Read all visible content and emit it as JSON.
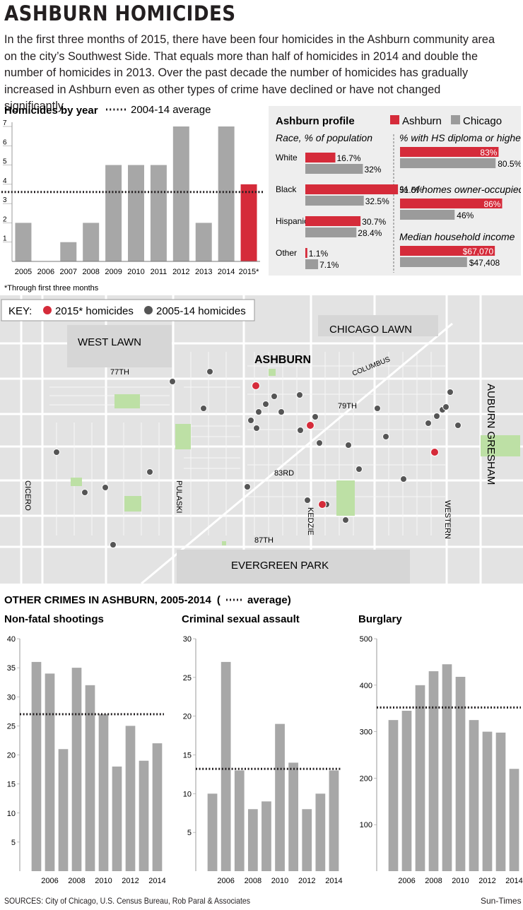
{
  "title": "ASHBURN HOMICIDES",
  "intro": "In the first three months of 2015, there have been four homicides in the Ashburn community area on the city’s Southwest Side. That equals more than half of homicides in 2014 and double the number of homicides in 2013. Over the past decade the number of homicides has gradually increased in Ashburn even as other types of crime have declined or have not changed significantly.",
  "homicides": {
    "heading": "Homicides by year",
    "legend_avg": "2004-14 average",
    "footnote": "*Through first three months"
  },
  "profile": {
    "heading": "Ashburn profile",
    "legend": [
      "Ashburn",
      "Chicago"
    ],
    "race_heading": "Race, % of population",
    "hs_heading": "% with HS diploma or higher",
    "owner_heading": "% of homes owner-occupied",
    "income_heading": "Median household income"
  },
  "map": {
    "key_label": "KEY:",
    "key_2015": "2015* homicides",
    "key_past": "2005-14 homicides",
    "labels": {
      "west_lawn": "WEST LAWN",
      "chicago_lawn": "CHICAGO LAWN",
      "ashburn": "ASHBURN",
      "columbus": "COLUMBUS",
      "auburn_gresham": "AUBURN GRESHAM",
      "s77": "77TH",
      "s79": "79TH",
      "s83": "83RD",
      "s87": "87TH",
      "cicero": "CICERO",
      "pulaski": "PULASKI",
      "kedzie": "KEDZIE",
      "western": "WESTERN",
      "evergreen": "EVERGREEN PARK"
    }
  },
  "other": {
    "heading": "OTHER CRIMES IN ASHBURN, 2005-2014",
    "heading_avg": "average)",
    "heading_paren": "("
  },
  "sources": "SOURCES: City of Chicago, U.S. Census Bureau, Rob Paral & Associates",
  "credit": "Sun-Times",
  "colors": {
    "ashburn": "#d52b3a",
    "chicago": "#9b9b9b",
    "bar": "#a7a7a7",
    "map_bg": "#e3e3e3",
    "park": "#bde0a5"
  },
  "chart_data": [
    {
      "type": "bar",
      "title": "Homicides by year",
      "categories": [
        "2005",
        "2006",
        "2007",
        "2008",
        "2009",
        "2010",
        "2011",
        "2012",
        "2013",
        "2014",
        "2015*"
      ],
      "values": [
        2,
        0,
        1,
        2,
        5,
        5,
        5,
        7,
        2,
        7,
        4
      ],
      "highlight": "2015*",
      "average": 3.6,
      "ylim": [
        0,
        7
      ],
      "yticks": [
        1,
        2,
        3,
        4,
        5,
        6,
        7
      ]
    },
    {
      "type": "bar",
      "title": "Ashburn profile",
      "series_names": [
        "Ashburn",
        "Chicago"
      ],
      "groups": [
        {
          "heading": "Race, % of population",
          "items": [
            {
              "label": "White",
              "ashburn": 16.7,
              "chicago": 32,
              "ashburn_text": "16.7%",
              "chicago_text": "32%"
            },
            {
              "label": "Black",
              "ashburn": 51.5,
              "chicago": 32.5,
              "ashburn_text": "51.5%",
              "chicago_text": "32.5%"
            },
            {
              "label": "Hispanic",
              "ashburn": 30.7,
              "chicago": 28.4,
              "ashburn_text": "30.7%",
              "chicago_text": "28.4%"
            },
            {
              "label": "Other",
              "ashburn": 1.1,
              "chicago": 7.1,
              "ashburn_text": "1.1%",
              "chicago_text": "7.1%"
            }
          ]
        },
        {
          "heading": "% with HS diploma or higher",
          "ashburn": 83,
          "chicago": 80.5,
          "ashburn_text": "83%",
          "chicago_text": "80.5%"
        },
        {
          "heading": "% of homes owner-occupied",
          "ashburn": 86,
          "chicago": 46,
          "ashburn_text": "86%",
          "chicago_text": "46%"
        },
        {
          "heading": "Median household income",
          "ashburn": 67070,
          "chicago": 47408,
          "ashburn_text": "$67,070",
          "chicago_text": "$47,408"
        }
      ]
    },
    {
      "type": "bar",
      "title": "Non-fatal shootings",
      "categories": [
        "2005",
        "2006",
        "2007",
        "2008",
        "2009",
        "2010",
        "2011",
        "2012",
        "2013",
        "2014"
      ],
      "values": [
        36,
        34,
        21,
        35,
        32,
        27,
        18,
        25,
        19,
        22
      ],
      "average": 27,
      "ylim": [
        0,
        40
      ],
      "yticks": [
        5,
        10,
        15,
        20,
        25,
        30,
        35,
        40
      ],
      "xticks": [
        "2006",
        "2008",
        "2010",
        "2012",
        "2014"
      ]
    },
    {
      "type": "bar",
      "title": "Criminal sexual assault",
      "categories": [
        "2005",
        "2006",
        "2007",
        "2008",
        "2009",
        "2010",
        "2011",
        "2012",
        "2013",
        "2014"
      ],
      "values": [
        10,
        27,
        13,
        8,
        9,
        19,
        14,
        8,
        10,
        13
      ],
      "average": 13.2,
      "ylim": [
        0,
        30
      ],
      "yticks": [
        5,
        10,
        15,
        20,
        25,
        30
      ],
      "xticks": [
        "2006",
        "2008",
        "2010",
        "2012",
        "2014"
      ]
    },
    {
      "type": "bar",
      "title": "Burglary",
      "categories": [
        "2005",
        "2006",
        "2007",
        "2008",
        "2009",
        "2010",
        "2011",
        "2012",
        "2013",
        "2014"
      ],
      "values": [
        325,
        345,
        400,
        430,
        445,
        418,
        325,
        300,
        298,
        220
      ],
      "average": 352,
      "ylim": [
        0,
        500
      ],
      "yticks": [
        100,
        200,
        300,
        400,
        500
      ],
      "xticks": [
        "2006",
        "2008",
        "2010",
        "2012",
        "2014"
      ]
    }
  ]
}
